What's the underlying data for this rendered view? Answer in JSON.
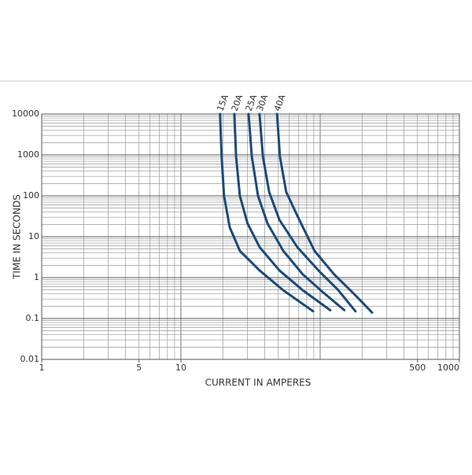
{
  "chart_data": {
    "type": "line",
    "x_label": "CURRENT IN AMPERES",
    "y_label": "TIME IN SECONDS",
    "x_log": true,
    "y_log": true,
    "grid": true,
    "xlim": [
      1,
      1000
    ],
    "ylim": [
      0.01,
      10000
    ],
    "xticks": [
      1,
      5,
      10,
      500,
      1000
    ],
    "yticks": [
      0.01,
      0.1,
      1,
      10,
      100,
      1000,
      10000
    ],
    "xgrid": [
      1,
      2,
      3,
      4,
      5,
      6,
      7,
      8,
      9,
      10,
      20,
      30,
      40,
      50,
      60,
      70,
      80,
      90,
      100,
      200,
      300,
      400,
      500,
      600,
      700,
      800,
      900,
      1000
    ],
    "ygrid": [
      0.01,
      0.02,
      0.03,
      0.04,
      0.05,
      0.06,
      0.07,
      0.08,
      0.09,
      0.1,
      0.2,
      0.3,
      0.4,
      0.5,
      0.6,
      0.7,
      0.8,
      0.9,
      1,
      2,
      3,
      4,
      5,
      6,
      7,
      8,
      9,
      10,
      20,
      30,
      40,
      50,
      60,
      70,
      80,
      90,
      100,
      200,
      300,
      400,
      500,
      600,
      700,
      800,
      900,
      1000,
      2000,
      3000,
      4000,
      5000,
      6000,
      7000,
      8000,
      9000,
      10000
    ],
    "series": [
      {
        "name": "15A",
        "color": "#1b4a78",
        "x": [
          19.1,
          19.6,
          20.4,
          22.4,
          26.5,
          36.7,
          54.3,
          88.9
        ],
        "values": [
          10000,
          915,
          100,
          17,
          4.5,
          1.5,
          0.49,
          0.15
        ]
      },
      {
        "name": "20A",
        "color": "#1b4a78",
        "x": [
          24.2,
          24.9,
          26.5,
          30.1,
          36.7,
          50.9,
          75,
          118
        ],
        "values": [
          10000,
          915,
          100,
          21,
          5.6,
          1.5,
          0.49,
          0.16
        ]
      },
      {
        "name": "25A",
        "color": "#1b4a78",
        "x": [
          30.6,
          32.3,
          35.8,
          41.9,
          54.3,
          75,
          103.7,
          149
        ],
        "values": [
          10000,
          915,
          100,
          21,
          4.5,
          1.2,
          0.45,
          0.16
        ]
      },
      {
        "name": "30A",
        "color": "#1b4a78",
        "x": [
          36.7,
          38.8,
          43,
          50.9,
          68.4,
          97,
          135,
          179
        ],
        "values": [
          10000,
          915,
          125,
          26,
          5.6,
          1.5,
          0.49,
          0.15
        ]
      },
      {
        "name": "40A",
        "color": "#1b4a78",
        "x": [
          49,
          51.4,
          57,
          68.4,
          91,
          126,
          175,
          236
        ],
        "values": [
          10000,
          915,
          125,
          33,
          4.5,
          1.2,
          0.4,
          0.14
        ]
      }
    ]
  }
}
